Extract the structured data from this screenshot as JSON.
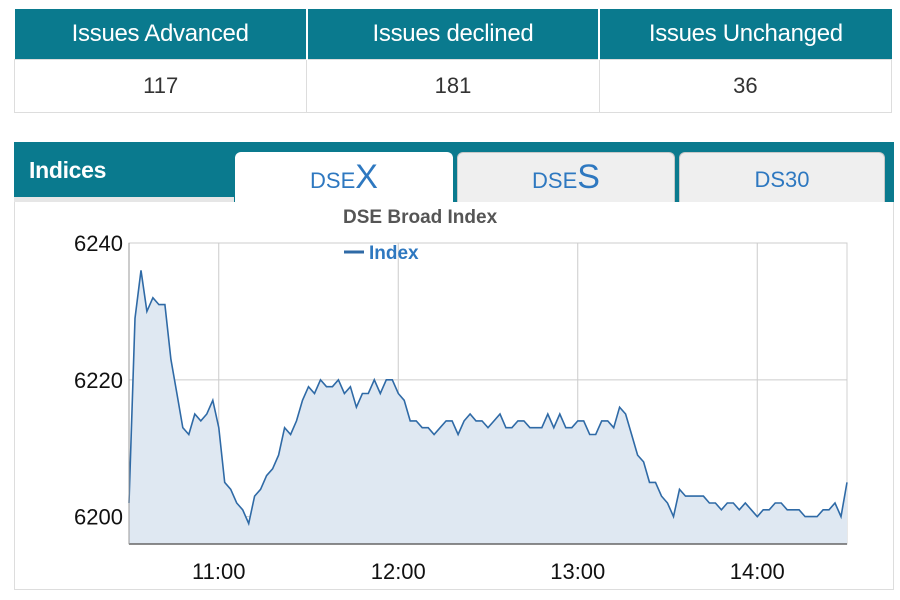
{
  "issues": {
    "headers": [
      "Issues Advanced",
      "Issues declined",
      "Issues Unchanged"
    ],
    "values": [
      "117",
      "181",
      "36"
    ]
  },
  "indices": {
    "title": "Indices",
    "tabs": [
      {
        "prefix": "DSE",
        "suffix": "X",
        "active": true
      },
      {
        "prefix": "DSE",
        "suffix": "S",
        "active": false
      },
      {
        "prefix": "DS30",
        "suffix": "",
        "active": false
      }
    ]
  },
  "colors": {
    "header_bg": "#0a7a8e",
    "line": "#2f6aa6",
    "fill": "#dfe8f2",
    "grid": "#cccccc",
    "tab_text": "#2e78c0"
  },
  "chart_data": {
    "type": "area",
    "title": "DSE Broad Index",
    "series": [
      {
        "name": "Index",
        "x": [
          "10:30",
          "10:32",
          "10:34",
          "10:36",
          "10:38",
          "10:40",
          "10:42",
          "10:44",
          "10:46",
          "10:48",
          "10:50",
          "10:52",
          "10:54",
          "10:56",
          "10:58",
          "11:00",
          "11:02",
          "11:04",
          "11:06",
          "11:08",
          "11:10",
          "11:12",
          "11:14",
          "11:16",
          "11:18",
          "11:20",
          "11:22",
          "11:24",
          "11:26",
          "11:28",
          "11:30",
          "11:32",
          "11:34",
          "11:36",
          "11:38",
          "11:40",
          "11:42",
          "11:44",
          "11:46",
          "11:48",
          "11:50",
          "11:52",
          "11:54",
          "11:56",
          "11:58",
          "12:00",
          "12:02",
          "12:04",
          "12:06",
          "12:08",
          "12:10",
          "12:12",
          "12:14",
          "12:16",
          "12:18",
          "12:20",
          "12:22",
          "12:24",
          "12:26",
          "12:28",
          "12:30",
          "12:32",
          "12:34",
          "12:36",
          "12:38",
          "12:40",
          "12:42",
          "12:44",
          "12:46",
          "12:48",
          "12:50",
          "12:52",
          "12:54",
          "12:56",
          "12:58",
          "13:00",
          "13:02",
          "13:04",
          "13:06",
          "13:08",
          "13:10",
          "13:12",
          "13:14",
          "13:16",
          "13:18",
          "13:20",
          "13:22",
          "13:24",
          "13:26",
          "13:28",
          "13:30",
          "13:32",
          "13:34",
          "13:36",
          "13:38",
          "13:40",
          "13:42",
          "13:44",
          "13:46",
          "13:48",
          "13:50",
          "13:52",
          "13:54",
          "13:56",
          "13:58",
          "14:00",
          "14:02",
          "14:04",
          "14:06",
          "14:08",
          "14:10",
          "14:12",
          "14:14",
          "14:16",
          "14:18",
          "14:20",
          "14:22",
          "14:24",
          "14:26",
          "14:28",
          "14:30"
        ],
        "values": [
          6202,
          6229,
          6236,
          6230,
          6232,
          6231,
          6231,
          6223,
          6218,
          6213,
          6212,
          6215,
          6214,
          6215,
          6217,
          6213,
          6205,
          6204,
          6202,
          6201,
          6199,
          6203,
          6204,
          6206,
          6207,
          6209,
          6213,
          6212,
          6214,
          6217,
          6219,
          6218,
          6220,
          6219,
          6219,
          6220,
          6218,
          6219,
          6216,
          6218,
          6218,
          6220,
          6218,
          6220,
          6220,
          6218,
          6217,
          6214,
          6214,
          6213,
          6213,
          6212,
          6213,
          6214,
          6214,
          6212,
          6214,
          6215,
          6214,
          6214,
          6213,
          6214,
          6215,
          6213,
          6213,
          6214,
          6214,
          6213,
          6213,
          6213,
          6215,
          6213,
          6215,
          6213,
          6213,
          6214,
          6214,
          6212,
          6212,
          6214,
          6214,
          6213,
          6216,
          6215,
          6212,
          6209,
          6208,
          6205,
          6205,
          6203,
          6202,
          6200,
          6204,
          6203,
          6203,
          6203,
          6203,
          6202,
          6202,
          6201,
          6202,
          6202,
          6201,
          6202,
          6201,
          6200,
          6201,
          6201,
          6202,
          6202,
          6201,
          6201,
          6201,
          6200,
          6200,
          6200,
          6201,
          6201,
          6202,
          6200,
          6205
        ]
      }
    ],
    "xticks": [
      "11:00",
      "12:00",
      "13:00",
      "14:00"
    ],
    "yticks": [
      6200,
      6220,
      6240
    ],
    "ylim": [
      6196,
      6240
    ],
    "xlim": [
      "10:30",
      "14:30"
    ],
    "grid": true,
    "legend": "top"
  }
}
